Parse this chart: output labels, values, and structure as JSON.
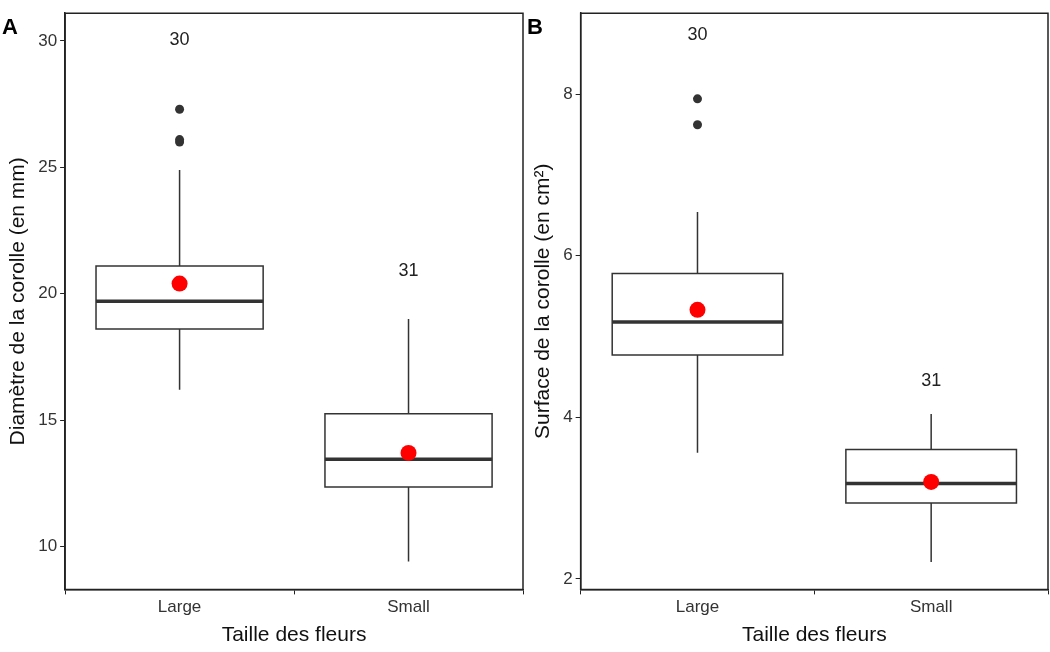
{
  "chart_data": [
    {
      "type": "box",
      "title": "A",
      "xlabel": "Taille des fleurs",
      "ylabel": "Diamètre de la corolle (en mm)",
      "categories": [
        "Large",
        "Small"
      ],
      "boxes": [
        {
          "low": 16.2,
          "q1": 18.6,
          "median": 19.7,
          "q3": 21.1,
          "high": 24.9,
          "mean": 20.4,
          "outliers": [
            26.0,
            26.1,
            27.3
          ]
        },
        {
          "low": 9.4,
          "q1": 12.35,
          "median": 13.45,
          "q3": 15.25,
          "high": 19.0,
          "mean": 13.7
        }
      ],
      "ylim": [
        8.3,
        31.1
      ],
      "yticks": [
        10,
        15,
        20,
        25,
        30
      ],
      "grid": false,
      "legend": false,
      "annotations": [
        "30",
        "31"
      ]
    },
    {
      "type": "box",
      "title": "B",
      "xlabel": "Taille des fleurs",
      "ylabel": "Surface de la corolle (en cm²)",
      "categories": [
        "Large",
        "Small"
      ],
      "boxes": [
        {
          "low": 3.56,
          "q1": 4.77,
          "median": 5.18,
          "q3": 5.78,
          "high": 6.54,
          "mean": 5.33,
          "outliers": [
            7.62,
            7.94
          ]
        },
        {
          "low": 2.21,
          "q1": 2.94,
          "median": 3.18,
          "q3": 3.6,
          "high": 4.04,
          "mean": 3.2
        }
      ],
      "ylim": [
        1.87,
        9.0
      ],
      "yticks": [
        2,
        4,
        6,
        8
      ],
      "grid": false,
      "legend": false,
      "annotations": [
        "30",
        "31"
      ]
    }
  ]
}
